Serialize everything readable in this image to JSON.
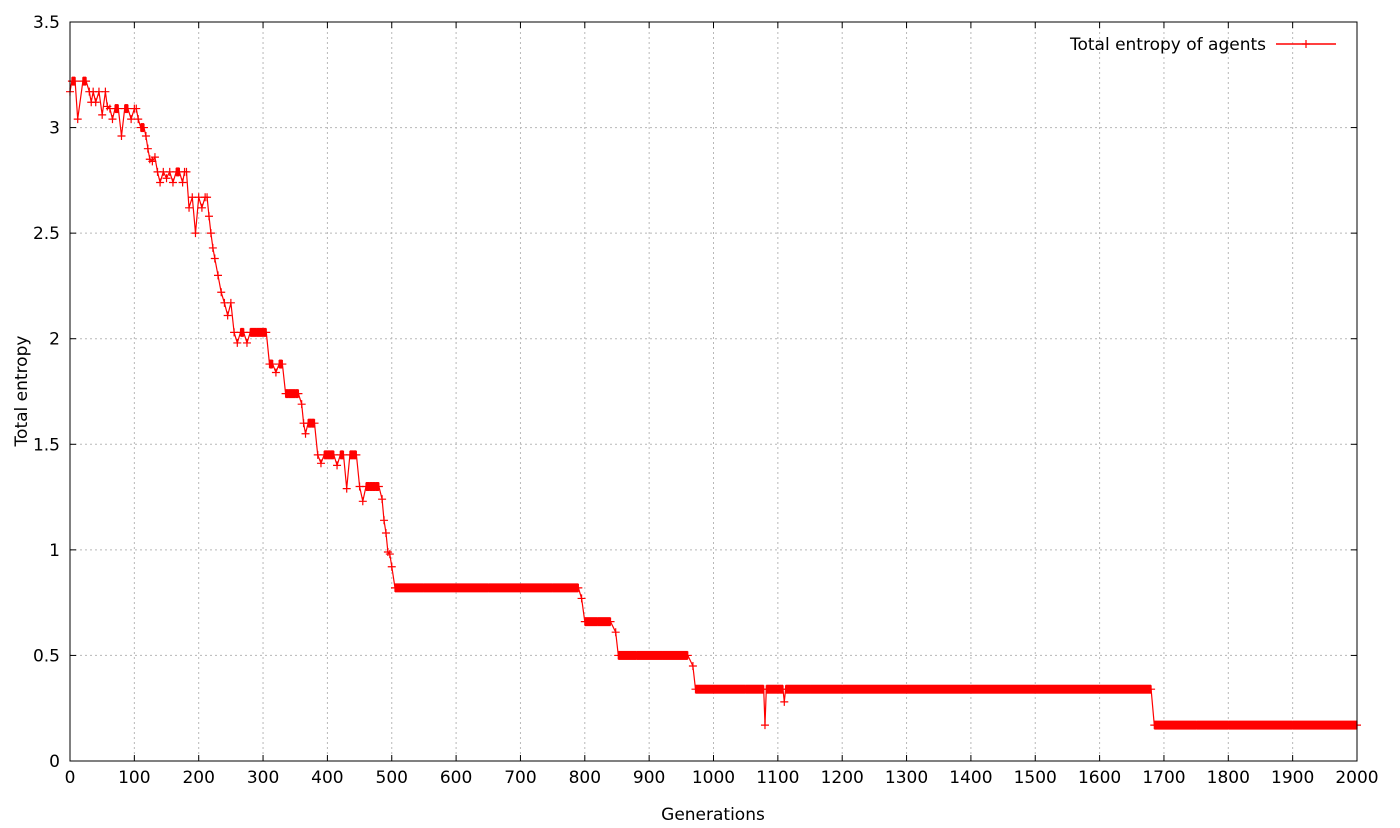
{
  "chart_data": {
    "type": "line",
    "title": "",
    "xlabel": "Generations",
    "ylabel": "Total entropy",
    "xlim": [
      0,
      2000
    ],
    "ylim": [
      0,
      3.5
    ],
    "xticks": [
      0,
      100,
      200,
      300,
      400,
      500,
      600,
      700,
      800,
      900,
      1000,
      1100,
      1200,
      1300,
      1400,
      1500,
      1600,
      1700,
      1800,
      1900,
      2000
    ],
    "yticks": [
      0,
      0.5,
      1,
      1.5,
      2,
      2.5,
      3,
      3.5
    ],
    "xtick_labels": [
      "0",
      "100",
      "200",
      "300",
      "400",
      "500",
      "600",
      "700",
      "800",
      "900",
      "1000",
      "1100",
      "1200",
      "1300",
      "1400",
      "1500",
      "1600",
      "1700",
      "1800",
      "1900",
      "2000"
    ],
    "ytick_labels": [
      "0",
      "0.5",
      "1",
      "1.5",
      "2",
      "2.5",
      "3",
      "3.5"
    ],
    "grid": true,
    "legend_position": "top-right",
    "series_color": "#ff0000",
    "series": [
      {
        "name": "Total entropy of agents",
        "marker": "plus",
        "x": [
          0,
          3,
          8,
          12,
          20,
          25,
          30,
          33,
          36,
          40,
          45,
          50,
          55,
          58,
          62,
          66,
          70,
          75,
          80,
          85,
          90,
          95,
          100,
          103,
          106,
          110,
          115,
          118,
          121,
          124,
          128,
          132,
          136,
          140,
          145,
          150,
          155,
          160,
          165,
          170,
          175,
          178,
          181,
          185,
          190,
          195,
          200,
          205,
          210,
          213,
          216,
          219,
          222,
          225,
          230,
          235,
          240,
          245,
          250,
          255,
          260,
          265,
          270,
          275,
          280,
          290,
          300,
          305,
          310,
          315,
          320,
          325,
          330,
          335,
          340,
          345,
          350,
          355,
          360,
          363,
          366,
          370,
          375,
          380,
          385,
          390,
          395,
          400,
          405,
          410,
          415,
          420,
          425,
          430,
          435,
          440,
          445,
          450,
          455,
          460,
          465,
          470,
          475,
          480,
          485,
          488,
          491,
          494,
          497,
          500,
          505,
          550,
          600,
          650,
          700,
          750,
          790,
          795,
          800,
          820,
          840,
          848,
          852,
          880,
          920,
          960,
          968,
          972,
          1000,
          1050,
          1078,
          1080,
          1082,
          1100,
          1108,
          1110,
          1112,
          1150,
          1200,
          1300,
          1400,
          1500,
          1600,
          1680,
          1685,
          1690,
          1750,
          1800,
          1900,
          2000
        ],
        "y": [
          3.17,
          3.22,
          3.22,
          3.04,
          3.22,
          3.22,
          3.17,
          3.12,
          3.17,
          3.12,
          3.17,
          3.06,
          3.17,
          3.1,
          3.09,
          3.04,
          3.09,
          3.09,
          2.96,
          3.09,
          3.09,
          3.04,
          3.09,
          3.09,
          3.04,
          3.0,
          3.0,
          2.96,
          2.9,
          2.85,
          2.84,
          2.86,
          2.79,
          2.74,
          2.79,
          2.76,
          2.79,
          2.74,
          2.79,
          2.79,
          2.74,
          2.79,
          2.79,
          2.62,
          2.67,
          2.5,
          2.67,
          2.62,
          2.67,
          2.67,
          2.58,
          2.5,
          2.43,
          2.38,
          2.3,
          2.22,
          2.17,
          2.11,
          2.17,
          2.03,
          1.98,
          2.03,
          2.03,
          1.98,
          2.03,
          2.03,
          2.03,
          2.03,
          1.88,
          1.88,
          1.84,
          1.88,
          1.88,
          1.74,
          1.74,
          1.74,
          1.74,
          1.74,
          1.69,
          1.6,
          1.55,
          1.6,
          1.6,
          1.6,
          1.45,
          1.41,
          1.45,
          1.45,
          1.45,
          1.45,
          1.4,
          1.45,
          1.45,
          1.29,
          1.45,
          1.45,
          1.45,
          1.3,
          1.23,
          1.3,
          1.3,
          1.3,
          1.3,
          1.3,
          1.24,
          1.14,
          1.08,
          0.99,
          0.98,
          0.92,
          0.82,
          0.82,
          0.82,
          0.82,
          0.82,
          0.82,
          0.82,
          0.77,
          0.66,
          0.66,
          0.66,
          0.61,
          0.5,
          0.5,
          0.5,
          0.5,
          0.45,
          0.34,
          0.34,
          0.34,
          0.34,
          0.17,
          0.34,
          0.34,
          0.34,
          0.28,
          0.34,
          0.34,
          0.34,
          0.34,
          0.34,
          0.34,
          0.34,
          0.34,
          0.17,
          0.17,
          0.17,
          0.17,
          0.17,
          0.17
        ]
      }
    ]
  }
}
